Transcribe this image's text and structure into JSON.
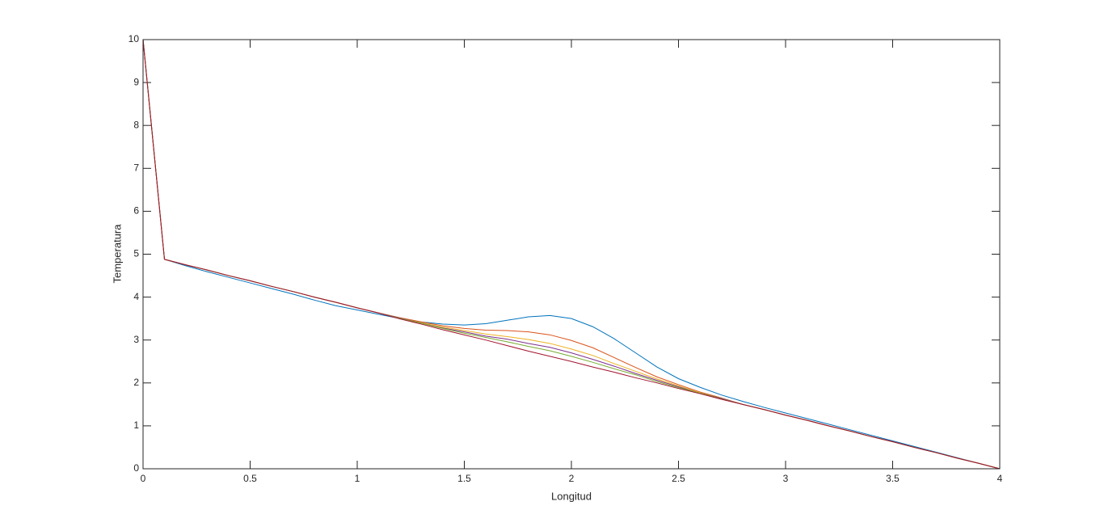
{
  "chart_data": {
    "type": "line",
    "x_label": "Longitud",
    "y_label": "Temperatura",
    "x": [
      0,
      0.1,
      0.2,
      0.3,
      0.4,
      0.5,
      0.6,
      0.7,
      0.8,
      0.9,
      1.0,
      1.1,
      1.2,
      1.3,
      1.4,
      1.5,
      1.6,
      1.7,
      1.8,
      1.9,
      2.0,
      2.1,
      2.2,
      2.3,
      2.4,
      2.5,
      2.6,
      2.7,
      2.8,
      2.9,
      3.0,
      3.1,
      3.2,
      3.3,
      3.4,
      3.5,
      3.6,
      3.7,
      3.8,
      3.9,
      4.0
    ],
    "series": [
      {
        "color": "#0072bd",
        "values": [
          10,
          4.88,
          4.73,
          4.59,
          4.46,
          4.33,
          4.2,
          4.07,
          3.93,
          3.8,
          3.7,
          3.6,
          3.5,
          3.42,
          3.37,
          3.35,
          3.38,
          3.46,
          3.54,
          3.57,
          3.5,
          3.31,
          3.03,
          2.7,
          2.37,
          2.1,
          1.9,
          1.72,
          1.57,
          1.43,
          1.3,
          1.17,
          1.04,
          0.91,
          0.78,
          0.65,
          0.52,
          0.39,
          0.26,
          0.13,
          0
        ]
      },
      {
        "color": "#d95319",
        "values": [
          10,
          4.88,
          4.75,
          4.63,
          4.5,
          4.38,
          4.25,
          4.13,
          4.0,
          3.88,
          3.75,
          3.63,
          3.52,
          3.42,
          3.33,
          3.27,
          3.23,
          3.22,
          3.19,
          3.12,
          2.99,
          2.82,
          2.59,
          2.36,
          2.14,
          1.96,
          1.79,
          1.65,
          1.5,
          1.38,
          1.25,
          1.13,
          1.0,
          0.88,
          0.75,
          0.63,
          0.5,
          0.38,
          0.25,
          0.13,
          0
        ]
      },
      {
        "color": "#edb120",
        "values": [
          10,
          4.88,
          4.75,
          4.63,
          4.5,
          4.38,
          4.25,
          4.13,
          4.0,
          3.88,
          3.75,
          3.63,
          3.51,
          3.4,
          3.3,
          3.22,
          3.14,
          3.08,
          3.01,
          2.92,
          2.79,
          2.64,
          2.45,
          2.27,
          2.09,
          1.93,
          1.77,
          1.64,
          1.5,
          1.38,
          1.25,
          1.13,
          1.0,
          0.88,
          0.75,
          0.63,
          0.5,
          0.38,
          0.25,
          0.13,
          0
        ]
      },
      {
        "color": "#7e2f8e",
        "values": [
          10,
          4.88,
          4.75,
          4.63,
          4.5,
          4.38,
          4.25,
          4.13,
          4.0,
          3.88,
          3.75,
          3.63,
          3.51,
          3.39,
          3.28,
          3.19,
          3.09,
          3.02,
          2.92,
          2.83,
          2.7,
          2.55,
          2.39,
          2.22,
          2.06,
          1.91,
          1.76,
          1.64,
          1.5,
          1.38,
          1.25,
          1.13,
          1.0,
          0.88,
          0.75,
          0.63,
          0.5,
          0.38,
          0.25,
          0.13,
          0
        ]
      },
      {
        "color": "#77ac30",
        "values": [
          10,
          4.88,
          4.75,
          4.63,
          4.5,
          4.38,
          4.25,
          4.13,
          4.0,
          3.88,
          3.75,
          3.63,
          3.5,
          3.39,
          3.27,
          3.16,
          3.06,
          2.96,
          2.85,
          2.75,
          2.62,
          2.48,
          2.33,
          2.19,
          2.03,
          1.89,
          1.76,
          1.63,
          1.5,
          1.38,
          1.25,
          1.13,
          1.0,
          0.88,
          0.75,
          0.63,
          0.5,
          0.38,
          0.25,
          0.13,
          0
        ]
      },
      {
        "color": "#a2142f",
        "values": [
          10,
          4.88,
          4.75,
          4.63,
          4.5,
          4.38,
          4.25,
          4.13,
          4.0,
          3.88,
          3.75,
          3.63,
          3.49,
          3.37,
          3.24,
          3.12,
          3.0,
          2.87,
          2.74,
          2.62,
          2.5,
          2.37,
          2.25,
          2.12,
          2.0,
          1.87,
          1.75,
          1.62,
          1.5,
          1.38,
          1.25,
          1.13,
          1.0,
          0.88,
          0.75,
          0.63,
          0.5,
          0.38,
          0.25,
          0.13,
          0
        ]
      }
    ],
    "xlim": [
      0,
      4
    ],
    "xticks": [
      0,
      0.5,
      1,
      1.5,
      2,
      2.5,
      3,
      3.5,
      4
    ],
    "ylim": [
      0,
      10
    ],
    "yticks": [
      0,
      1,
      2,
      3,
      4,
      5,
      6,
      7,
      8,
      9,
      10
    ],
    "grid": false
  }
}
